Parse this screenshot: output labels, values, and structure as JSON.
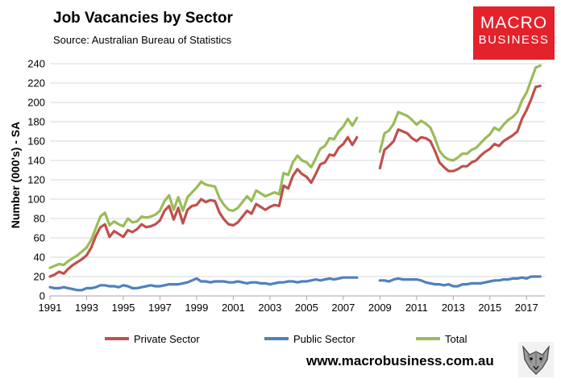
{
  "header": {
    "title": "Job Vacancies by Sector",
    "subtitle": "Source: Australian Bureau of Statistics"
  },
  "logo": {
    "line1": "MACRO",
    "line2": "BUSINESS",
    "icon": "wolf-icon"
  },
  "footer": {
    "url": "www.macrobusiness.com.au"
  },
  "colors": {
    "private": "#c0504d",
    "public": "#4f81bd",
    "total": "#9bbb59",
    "grid": "#d9d9d9",
    "brand": "#e3222b"
  },
  "chart_data": {
    "type": "line",
    "title": "Job Vacancies by Sector",
    "xlabel": "",
    "ylabel": "Number (000's) - SA",
    "xlim": [
      1991,
      2018
    ],
    "ylim": [
      0,
      240
    ],
    "yticks": [
      0,
      20,
      40,
      60,
      80,
      100,
      120,
      140,
      160,
      180,
      200,
      220,
      240
    ],
    "xticks": [
      1991,
      1993,
      1995,
      1997,
      1999,
      2001,
      2003,
      2005,
      2007,
      2009,
      2011,
      2013,
      2015,
      2017
    ],
    "grid": true,
    "legend": "bottom",
    "gap": [
      2008.0,
      2009.0
    ],
    "series": [
      {
        "name": "Private Sector",
        "color": "#c0504d",
        "x": [
          1991,
          1991.25,
          1991.5,
          1991.75,
          1992,
          1992.25,
          1992.5,
          1992.75,
          1993,
          1993.25,
          1993.5,
          1993.75,
          1994,
          1994.25,
          1994.5,
          1994.75,
          1995,
          1995.25,
          1995.5,
          1995.75,
          1996,
          1996.25,
          1996.5,
          1996.75,
          1997,
          1997.25,
          1997.5,
          1997.75,
          1998,
          1998.25,
          1998.5,
          1998.75,
          1999,
          1999.25,
          1999.5,
          1999.75,
          2000,
          2000.25,
          2000.5,
          2000.75,
          2001,
          2001.25,
          2001.5,
          2001.75,
          2002,
          2002.25,
          2002.5,
          2002.75,
          2003,
          2003.25,
          2003.5,
          2003.75,
          2004,
          2004.25,
          2004.5,
          2004.75,
          2005,
          2005.25,
          2005.5,
          2005.75,
          2006,
          2006.25,
          2006.5,
          2006.75,
          2007,
          2007.25,
          2007.5,
          2007.75,
          null,
          2009.0,
          2009.25,
          2009.5,
          2009.75,
          2010,
          2010.25,
          2010.5,
          2010.75,
          2011,
          2011.25,
          2011.5,
          2011.75,
          2012,
          2012.25,
          2012.5,
          2012.75,
          2013,
          2013.25,
          2013.5,
          2013.75,
          2014,
          2014.25,
          2014.5,
          2014.75,
          2015,
          2015.25,
          2015.5,
          2015.75,
          2016,
          2016.25,
          2016.5,
          2016.75,
          2017,
          2017.25,
          2017.5,
          2017.75
        ],
        "values": [
          20,
          22,
          25,
          23,
          28,
          32,
          35,
          38,
          42,
          50,
          62,
          71,
          74,
          61,
          67,
          64,
          61,
          68,
          66,
          69,
          74,
          71,
          72,
          74,
          78,
          88,
          93,
          79,
          91,
          75,
          89,
          93,
          94,
          100,
          97,
          99,
          98,
          86,
          79,
          74,
          73,
          76,
          82,
          88,
          85,
          95,
          92,
          89,
          92,
          94,
          93,
          114,
          111,
          124,
          131,
          126,
          123,
          117,
          126,
          136,
          138,
          146,
          145,
          153,
          157,
          164,
          156,
          164,
          null,
          132,
          151,
          155,
          160,
          172,
          170,
          168,
          163,
          160,
          164,
          163,
          160,
          150,
          138,
          133,
          129,
          129,
          131,
          134,
          134,
          138,
          140,
          145,
          149,
          152,
          157,
          155,
          160,
          163,
          166,
          170,
          183,
          192,
          203,
          216,
          217
        ]
      },
      {
        "name": "Public Sector",
        "color": "#4f81bd",
        "x": [
          1991,
          1991.25,
          1991.5,
          1991.75,
          1992,
          1992.25,
          1992.5,
          1992.75,
          1993,
          1993.25,
          1993.5,
          1993.75,
          1994,
          1994.25,
          1994.5,
          1994.75,
          1995,
          1995.25,
          1995.5,
          1995.75,
          1996,
          1996.25,
          1996.5,
          1996.75,
          1997,
          1997.25,
          1997.5,
          1997.75,
          1998,
          1998.25,
          1998.5,
          1998.75,
          1999,
          1999.25,
          1999.5,
          1999.75,
          2000,
          2000.25,
          2000.5,
          2000.75,
          2001,
          2001.25,
          2001.5,
          2001.75,
          2002,
          2002.25,
          2002.5,
          2002.75,
          2003,
          2003.25,
          2003.5,
          2003.75,
          2004,
          2004.25,
          2004.5,
          2004.75,
          2005,
          2005.25,
          2005.5,
          2005.75,
          2006,
          2006.25,
          2006.5,
          2006.75,
          2007,
          2007.25,
          2007.5,
          2007.75,
          null,
          2009.0,
          2009.25,
          2009.5,
          2009.75,
          2010,
          2010.25,
          2010.5,
          2010.75,
          2011,
          2011.25,
          2011.5,
          2011.75,
          2012,
          2012.25,
          2012.5,
          2012.75,
          2013,
          2013.25,
          2013.5,
          2013.75,
          2014,
          2014.25,
          2014.5,
          2014.75,
          2015,
          2015.25,
          2015.5,
          2015.75,
          2016,
          2016.25,
          2016.5,
          2016.75,
          2017,
          2017.25,
          2017.5,
          2017.75
        ],
        "values": [
          9,
          8,
          8,
          9,
          8,
          7,
          6,
          6,
          8,
          8,
          9,
          11,
          11,
          10,
          10,
          9,
          11,
          10,
          8,
          8,
          9,
          10,
          11,
          10,
          10,
          11,
          12,
          12,
          12,
          13,
          14,
          16,
          18,
          15,
          15,
          14,
          15,
          15,
          15,
          14,
          14,
          15,
          14,
          13,
          14,
          14,
          13,
          13,
          12,
          13,
          14,
          14,
          15,
          15,
          14,
          15,
          15,
          16,
          17,
          16,
          17,
          18,
          17,
          18,
          19,
          19,
          19,
          19,
          null,
          16,
          16,
          15,
          17,
          18,
          17,
          17,
          17,
          17,
          16,
          14,
          13,
          12,
          12,
          11,
          12,
          10,
          10,
          12,
          12,
          13,
          13,
          13,
          14,
          15,
          16,
          16,
          17,
          17,
          18,
          18,
          19,
          18,
          20,
          20,
          20
        ]
      },
      {
        "name": "Total",
        "color": "#9bbb59",
        "x": [
          1991,
          1991.25,
          1991.5,
          1991.75,
          1992,
          1992.25,
          1992.5,
          1992.75,
          1993,
          1993.25,
          1993.5,
          1993.75,
          1994,
          1994.25,
          1994.5,
          1994.75,
          1995,
          1995.25,
          1995.5,
          1995.75,
          1996,
          1996.25,
          1996.5,
          1996.75,
          1997,
          1997.25,
          1997.5,
          1997.75,
          1998,
          1998.25,
          1998.5,
          1998.75,
          1999,
          1999.25,
          1999.5,
          1999.75,
          2000,
          2000.25,
          2000.5,
          2000.75,
          2001,
          2001.25,
          2001.5,
          2001.75,
          2002,
          2002.25,
          2002.5,
          2002.75,
          2003,
          2003.25,
          2003.5,
          2003.75,
          2004,
          2004.25,
          2004.5,
          2004.75,
          2005,
          2005.25,
          2005.5,
          2005.75,
          2006,
          2006.25,
          2006.5,
          2006.75,
          2007,
          2007.25,
          2007.5,
          2007.75,
          null,
          2009.0,
          2009.25,
          2009.5,
          2009.75,
          2010,
          2010.25,
          2010.5,
          2010.75,
          2011,
          2011.25,
          2011.5,
          2011.75,
          2012,
          2012.25,
          2012.5,
          2012.75,
          2013,
          2013.25,
          2013.5,
          2013.75,
          2014,
          2014.25,
          2014.5,
          2014.75,
          2015,
          2015.25,
          2015.5,
          2015.75,
          2016,
          2016.25,
          2016.5,
          2016.75,
          2017,
          2017.25,
          2017.5,
          2017.75
        ],
        "values": [
          29,
          31,
          33,
          32,
          36,
          39,
          42,
          46,
          50,
          58,
          70,
          82,
          86,
          73,
          77,
          74,
          72,
          80,
          76,
          77,
          82,
          81,
          82,
          84,
          88,
          98,
          104,
          89,
          102,
          88,
          102,
          107,
          112,
          118,
          115,
          114,
          113,
          101,
          94,
          89,
          88,
          91,
          97,
          103,
          98,
          109,
          106,
          103,
          105,
          107,
          105,
          127,
          125,
          138,
          145,
          140,
          138,
          133,
          142,
          152,
          155,
          163,
          162,
          170,
          175,
          183,
          176,
          184,
          null,
          149,
          168,
          171,
          178,
          190,
          188,
          186,
          182,
          177,
          181,
          178,
          174,
          163,
          150,
          144,
          141,
          140,
          143,
          147,
          147,
          151,
          153,
          158,
          163,
          167,
          174,
          171,
          177,
          182,
          185,
          190,
          202,
          210,
          223,
          236,
          238
        ]
      }
    ]
  }
}
